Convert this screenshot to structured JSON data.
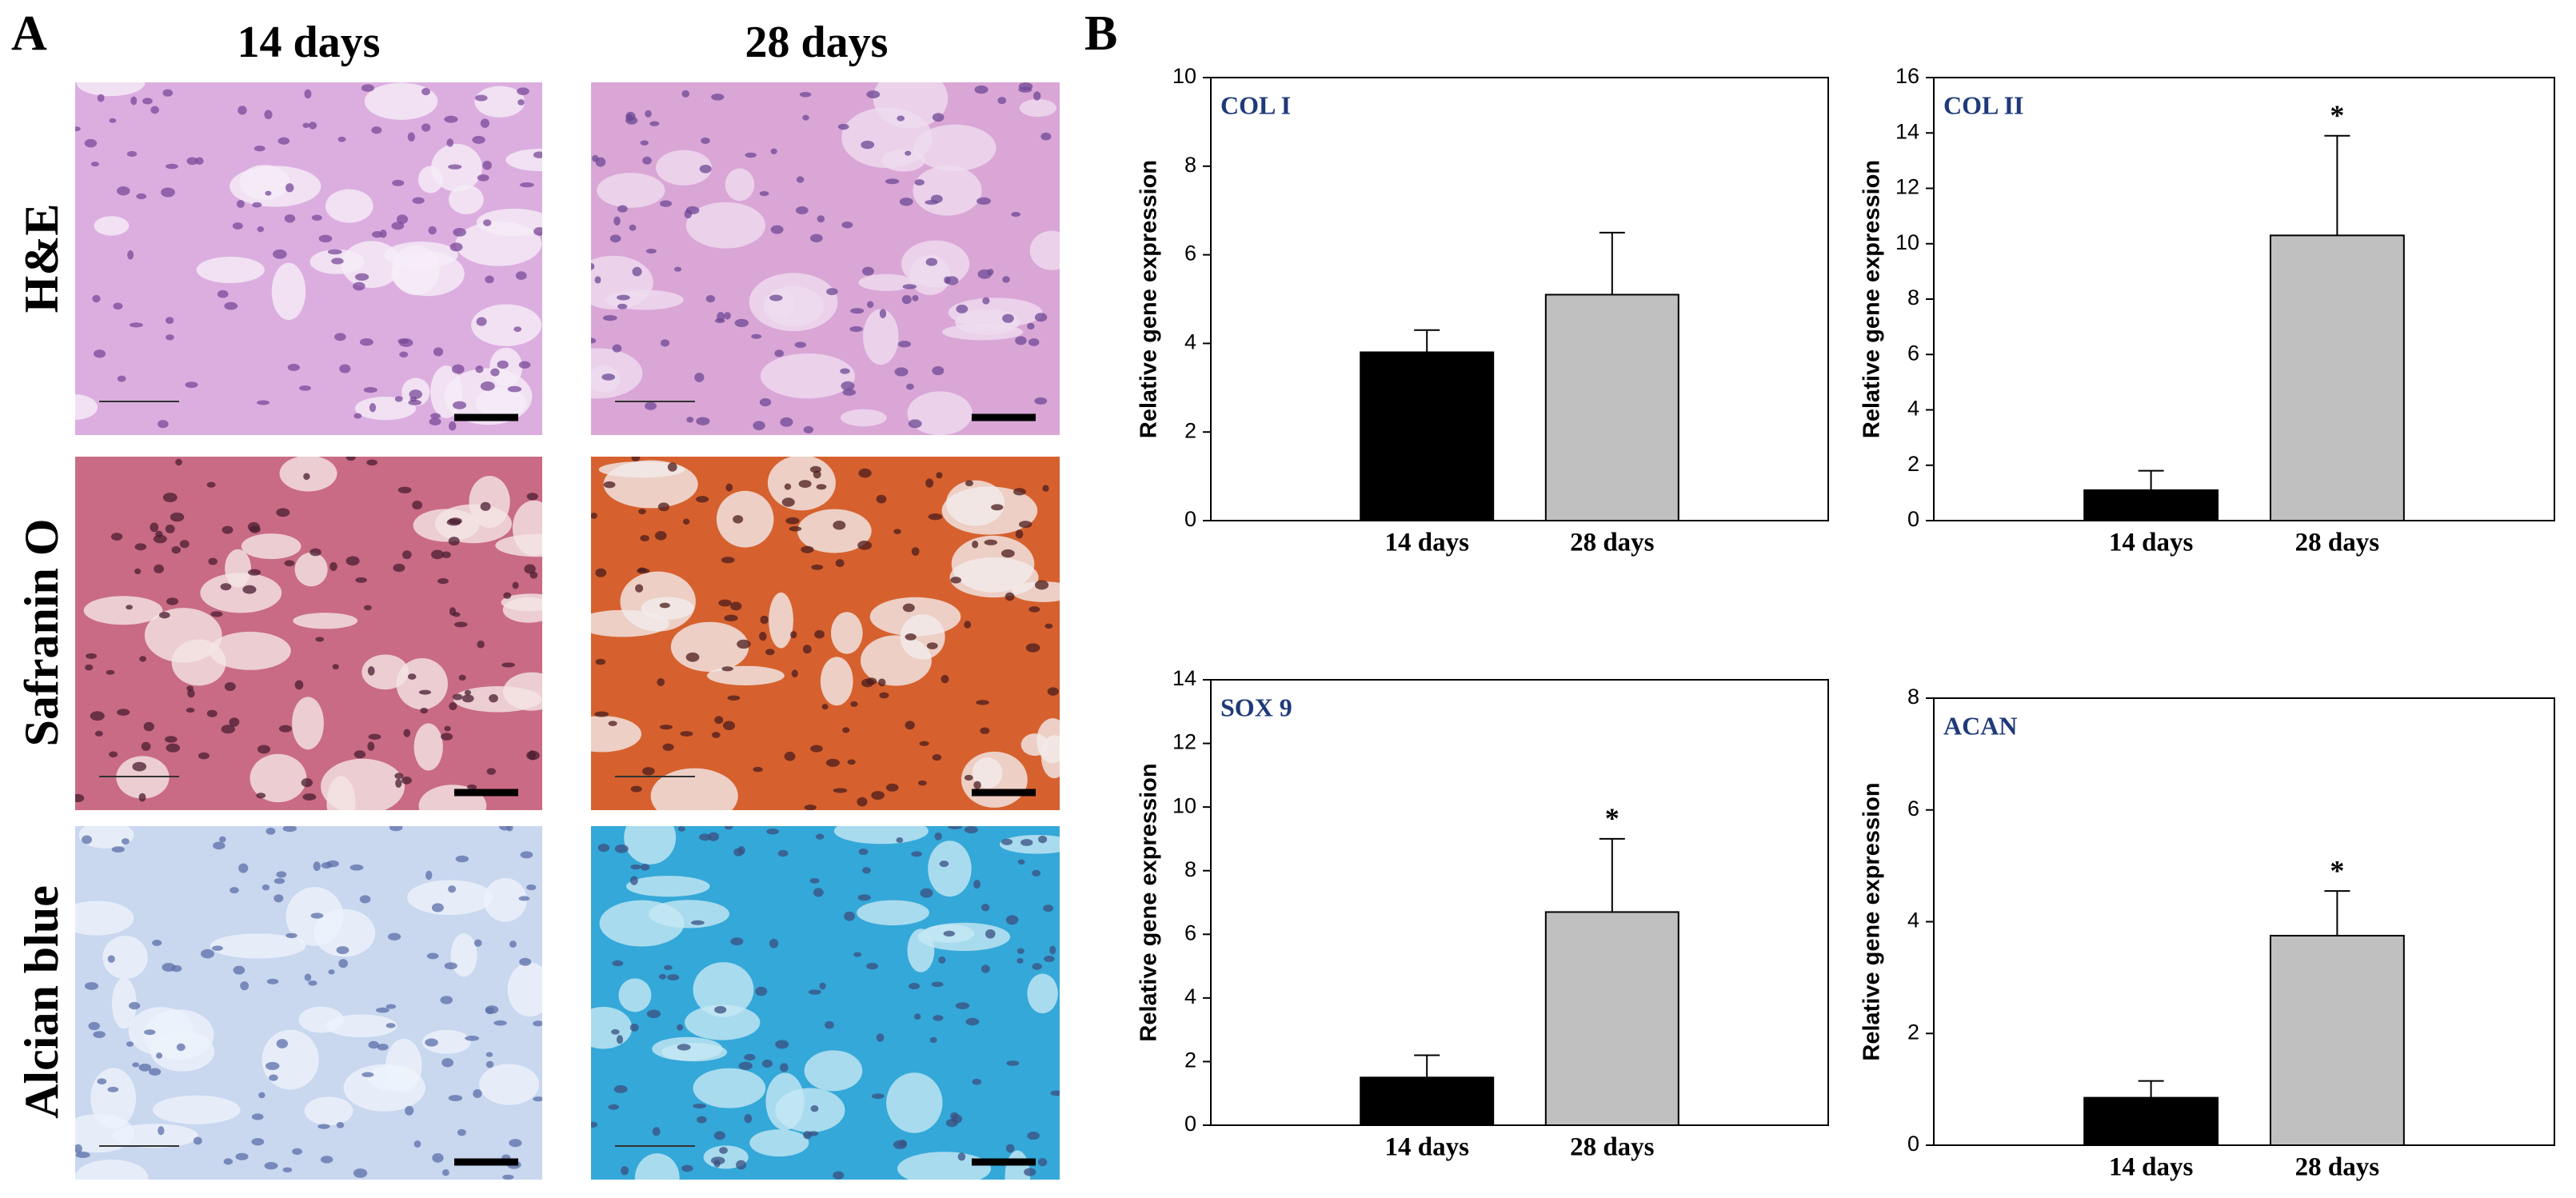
{
  "panel_a": {
    "label": "A",
    "columns": [
      "14 days",
      "28 days"
    ],
    "rows": [
      "H&E",
      "Safranin O",
      "Alcian blue"
    ]
  },
  "panel_b_label": "B",
  "chart_data": [
    {
      "type": "bar",
      "title": "COL I",
      "ylabel": "Relative gene expression",
      "categories": [
        "14 days",
        "28 days"
      ],
      "values": [
        3.8,
        5.1
      ],
      "errors": [
        0.5,
        1.4
      ],
      "colors": [
        "#000000",
        "#c0c0c0"
      ],
      "significance": [
        null,
        null
      ],
      "ylim": [
        0,
        10
      ],
      "yticks": [
        0,
        2,
        4,
        6,
        8,
        10
      ]
    },
    {
      "type": "bar",
      "title": "COL II",
      "ylabel": "Relative gene expression",
      "categories": [
        "14 days",
        "28 days"
      ],
      "values": [
        1.1,
        10.3
      ],
      "errors": [
        0.7,
        3.6
      ],
      "colors": [
        "#000000",
        "#c0c0c0"
      ],
      "significance": [
        null,
        "*"
      ],
      "ylim": [
        0,
        16
      ],
      "yticks": [
        0,
        2,
        4,
        6,
        8,
        10,
        12,
        14,
        16
      ]
    },
    {
      "type": "bar",
      "title": "SOX 9",
      "ylabel": "Relative gene expression",
      "categories": [
        "14 days",
        "28 days"
      ],
      "values": [
        1.5,
        6.7
      ],
      "errors": [
        0.7,
        2.3
      ],
      "colors": [
        "#000000",
        "#c0c0c0"
      ],
      "significance": [
        null,
        "*"
      ],
      "ylim": [
        0,
        14
      ],
      "yticks": [
        0,
        2,
        4,
        6,
        8,
        10,
        12,
        14
      ]
    },
    {
      "type": "bar",
      "title": "ACAN",
      "ylabel": "Relative gene expression",
      "categories": [
        "14 days",
        "28 days"
      ],
      "values": [
        0.85,
        3.75
      ],
      "errors": [
        0.3,
        0.8
      ],
      "colors": [
        "#000000",
        "#c0c0c0"
      ],
      "significance": [
        null,
        "*"
      ],
      "ylim": [
        0,
        8
      ],
      "yticks": [
        0,
        2,
        4,
        6,
        8
      ]
    }
  ]
}
